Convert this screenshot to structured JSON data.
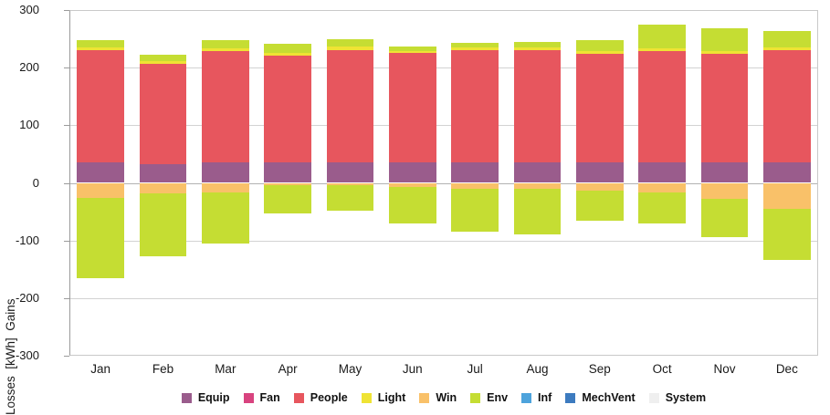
{
  "chart_data": {
    "type": "bar",
    "stacked": true,
    "title": "",
    "ylabel": "Losses  [kWh]  Gains",
    "xlabel": "",
    "ylim": [
      -300,
      300
    ],
    "yticks": [
      300,
      200,
      100,
      0,
      -100,
      -200,
      -300
    ],
    "grid": true,
    "legend_position": "bottom",
    "categories": [
      "Jan",
      "Feb",
      "Mar",
      "Apr",
      "May",
      "Jun",
      "Jul",
      "Aug",
      "Sep",
      "Oct",
      "Nov",
      "Dec"
    ],
    "series": [
      {
        "name": "Equip",
        "color": "#9a5c8c",
        "gains": [
          36,
          32,
          36,
          35,
          36,
          35,
          36,
          36,
          35,
          36,
          35,
          36
        ],
        "losses": [
          0,
          0,
          0,
          0,
          0,
          0,
          0,
          0,
          0,
          0,
          0,
          0
        ]
      },
      {
        "name": "Fan",
        "color": "#d8437f",
        "gains": [
          0,
          0,
          0,
          0,
          0,
          0,
          0,
          0,
          0,
          0,
          0,
          0
        ],
        "losses": [
          0,
          0,
          0,
          0,
          0,
          0,
          0,
          0,
          0,
          0,
          0,
          0
        ]
      },
      {
        "name": "People",
        "color": "#e7565e",
        "gains": [
          194,
          175,
          193,
          186,
          195,
          190,
          194,
          194,
          189,
          193,
          189,
          194
        ],
        "losses": [
          0,
          0,
          0,
          0,
          0,
          0,
          0,
          0,
          0,
          0,
          0,
          0
        ]
      },
      {
        "name": "Light",
        "color": "#efe334",
        "gains": [
          5,
          4,
          5,
          5,
          5,
          4,
          5,
          5,
          5,
          5,
          5,
          5
        ],
        "losses": [
          0,
          0,
          0,
          0,
          0,
          0,
          0,
          0,
          0,
          0,
          0,
          0
        ]
      },
      {
        "name": "Win",
        "color": "#f9c169",
        "gains": [
          0,
          0,
          0,
          0,
          0,
          0,
          0,
          0,
          0,
          0,
          0,
          0
        ],
        "losses": [
          -26,
          -18,
          -17,
          -4,
          -4,
          -7,
          -11,
          -10,
          -14,
          -16,
          -28,
          -45
        ]
      },
      {
        "name": "Env",
        "color": "#c5dd33",
        "gains": [
          12,
          11,
          14,
          15,
          13,
          8,
          8,
          9,
          19,
          40,
          39,
          29
        ],
        "losses": [
          -139,
          -109,
          -88,
          -49,
          -45,
          -64,
          -73,
          -80,
          -52,
          -54,
          -66,
          -89
        ]
      },
      {
        "name": "Inf",
        "color": "#4da3dc",
        "gains": [
          0,
          0,
          0,
          0,
          0,
          0,
          0,
          0,
          0,
          0,
          0,
          0
        ],
        "losses": [
          0,
          0,
          0,
          0,
          0,
          0,
          0,
          0,
          0,
          0,
          0,
          0
        ]
      },
      {
        "name": "MechVent",
        "color": "#3d7bbf",
        "gains": [
          0,
          0,
          0,
          0,
          0,
          0,
          0,
          0,
          0,
          0,
          0,
          0
        ],
        "losses": [
          0,
          0,
          0,
          0,
          0,
          0,
          0,
          0,
          0,
          0,
          0,
          0
        ]
      },
      {
        "name": "System",
        "color": "#efefef",
        "gains": [
          0,
          0,
          0,
          0,
          0,
          0,
          0,
          0,
          0,
          0,
          0,
          0
        ],
        "losses": [
          0,
          0,
          0,
          0,
          0,
          0,
          0,
          0,
          0,
          0,
          0,
          0
        ]
      }
    ]
  }
}
